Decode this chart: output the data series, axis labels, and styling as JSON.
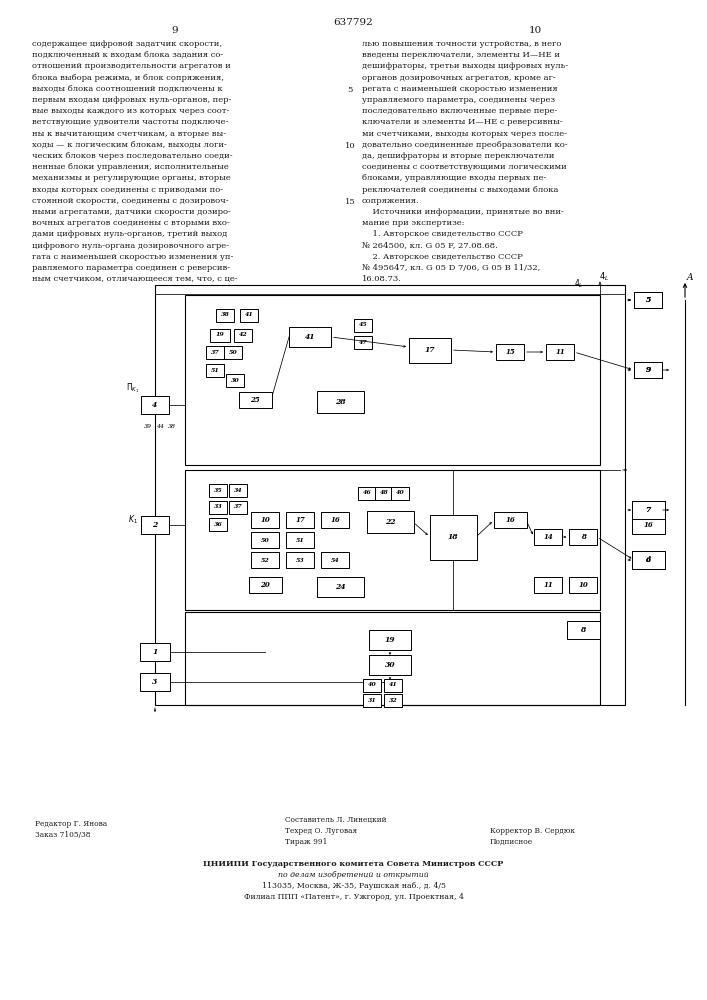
{
  "patent_number": "637792",
  "page_left": "9",
  "page_right": "10",
  "text_left": [
    "содержащее цифровой задатчик скорости,",
    "подключенный к входам блока задания со-",
    "отношений производительности агрегатов и",
    "блока выбора режима, и блок сопряжения,",
    "выходы блока соотношений подключены к",
    "первым входам цифровых нуль-органов, пер-",
    "вые выходы каждого из которых через соот-",
    "ветствующие удвоители частоты подключе-",
    "ны к вычитающим счетчикам, а вторые вы-",
    "ходы — к логическим блокам, выходы логи-",
    "ческих блоков через последовательно соеди-",
    "ненные блоки управления, исполнительные",
    "механизмы и регулирующие органы, вторые",
    "входы которых соединены с приводами по-",
    "стоянной скорости, соединены с дозировоч-",
    "ными агрегатами, датчики скорости дозиро-",
    "вочных агрегатов соединены с вторыми вхо-",
    "дами цифровых нуль-органов, третий выход",
    "цифрового нуль-органа дозировочного агре-",
    "гата с наименьшей скоростью изменения уп-",
    "равляемого параметра соединен с реверсив-",
    "ным счетчиком, отличающееся тем, что, с це-"
  ],
  "text_right": [
    "лью повышения точности устройства, в него",
    "введены переключатели, элементы И—НЕ и",
    "дешифраторы, третьи выходы цифровых нуль-",
    "органов дозировочных агрегатов, кроме аг-",
    "регата с наименьшей скоростью изменения",
    "управляемого параметра, соединены через",
    "последовательно включенные первые пере-",
    "ключатели и элементы И—НЕ с реверсивны-",
    "ми счетчиками, выходы которых через после-",
    "довательно соединенные преобразователи ко-",
    "да, дешифраторы и вторые переключатели",
    "соединены с соответствующими логическими",
    "блоками, управляющие входы первых пе-",
    "реключателей соединены с выходами блока",
    "сопряжения.",
    "    Источники информации, принятые во вни-",
    "мание при экспертизе:",
    "    1. Авторское свидетельство СССР",
    "№ 264500, кл. G 05 F, 27.08.68.",
    "    2. Авторское свидетельство СССР",
    "№ 495647, кл. G 05 D 7/06, G 05 В 11/32,",
    "16.08.73."
  ],
  "footer_left": [
    "Редактор Г. Янова",
    "Заказ 7105/38"
  ],
  "footer_center": [
    "Составитель Л. Линецкий",
    "Техред О. Луговая",
    "Тираж 991"
  ],
  "footer_right": [
    "Корректор В. Сердюк",
    "Подписное"
  ],
  "footer_bottom": [
    "ЦНИИПИ Государственного комитета Совета Министров СССР",
    "по делам изобретений и открытий",
    "113035, Москва, Ж-35, Раушская наб., д. 4/5",
    "Филиал ППП «Патент», г. Ужгород, ул. Проектная, 4"
  ],
  "background_color": "#ffffff",
  "text_color": "#1a1a1a"
}
